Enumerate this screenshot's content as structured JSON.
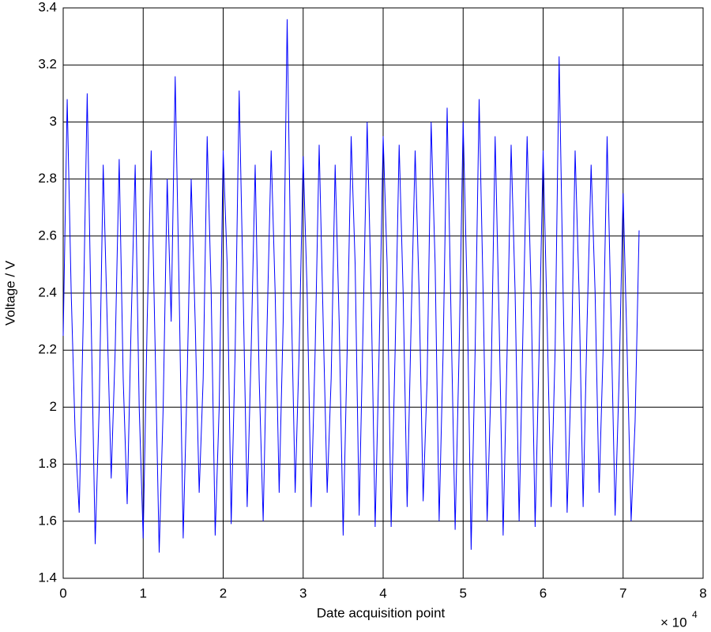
{
  "chart_data": {
    "type": "line",
    "xlabel": "Date acquisition point",
    "ylabel": "Voltage / V",
    "x_multiplier": {
      "base": "× 10",
      "power": "4"
    },
    "xlim": [
      0,
      8
    ],
    "xticks": [
      0,
      1,
      2,
      3,
      4,
      5,
      6,
      7,
      8
    ],
    "ylim": [
      1.4,
      3.4
    ],
    "yticks": [
      1.4,
      1.6,
      1.8,
      2,
      2.2,
      2.4,
      2.6,
      2.8,
      3,
      3.2,
      3.4
    ],
    "grid": true,
    "x": [
      0,
      0.05,
      0.1,
      0.15,
      0.2,
      0.25,
      0.3,
      0.35,
      0.4,
      0.45,
      0.5,
      0.55,
      0.6,
      0.65,
      0.7,
      0.75,
      0.8,
      0.85,
      0.9,
      0.95,
      1,
      1.05,
      1.1,
      1.15,
      1.2,
      1.25,
      1.3,
      1.35,
      1.4,
      1.45,
      1.5,
      1.55,
      1.6,
      1.65,
      1.7,
      1.75,
      1.8,
      1.85,
      1.9,
      1.95,
      2,
      2.05,
      2.1,
      2.15,
      2.2,
      2.25,
      2.3,
      2.35,
      2.4,
      2.45,
      2.5,
      2.55,
      2.6,
      2.65,
      2.7,
      2.75,
      2.8,
      2.85,
      2.9,
      2.95,
      3,
      3.05,
      3.1,
      3.15,
      3.2,
      3.25,
      3.3,
      3.35,
      3.4,
      3.45,
      3.5,
      3.55,
      3.6,
      3.65,
      3.7,
      3.75,
      3.8,
      3.85,
      3.9,
      3.95,
      4,
      4.05,
      4.1,
      4.15,
      4.2,
      4.25,
      4.3,
      4.35,
      4.4,
      4.45,
      4.5,
      4.55,
      4.6,
      4.65,
      4.7,
      4.75,
      4.8,
      4.85,
      4.9,
      4.95,
      5,
      5.05,
      5.1,
      5.15,
      5.2,
      5.25,
      5.3,
      5.35,
      5.4,
      5.45,
      5.5,
      5.55,
      5.6,
      5.65,
      5.7,
      5.75,
      5.8,
      5.85,
      5.9,
      5.95,
      6,
      6.05,
      6.1,
      6.15,
      6.2,
      6.25,
      6.3,
      6.35,
      6.4,
      6.45,
      6.5,
      6.55,
      6.6,
      6.65,
      6.7,
      6.75,
      6.8,
      6.85,
      6.9,
      6.95,
      7,
      7.05,
      7.1,
      7.15,
      7.2
    ],
    "series": [
      {
        "color": "#0000ff",
        "values": [
          2.25,
          3.08,
          2.4,
          1.9,
          1.63,
          2.3,
          3.1,
          2.3,
          1.52,
          2.0,
          2.85,
          2.3,
          1.75,
          2.2,
          2.87,
          2.1,
          1.66,
          2.3,
          2.85,
          2.0,
          1.54,
          2.3,
          2.9,
          2.2,
          1.49,
          2.0,
          2.8,
          2.3,
          3.16,
          2.4,
          1.54,
          2.1,
          2.8,
          2.3,
          1.7,
          2.1,
          2.95,
          2.4,
          1.55,
          2.0,
          2.9,
          2.5,
          1.59,
          2.2,
          3.11,
          2.4,
          1.65,
          2.2,
          2.85,
          2.1,
          1.6,
          2.3,
          2.9,
          2.4,
          1.7,
          2.3,
          3.36,
          2.4,
          1.7,
          2.2,
          2.88,
          2.4,
          1.65,
          2.2,
          2.92,
          2.3,
          1.7,
          2.1,
          2.85,
          2.3,
          1.55,
          2.2,
          2.95,
          2.5,
          1.62,
          2.3,
          3.0,
          2.4,
          1.58,
          2.2,
          2.95,
          2.5,
          1.58,
          2.2,
          2.92,
          2.4,
          1.65,
          2.3,
          2.9,
          2.4,
          1.67,
          2.1,
          3.0,
          2.5,
          1.6,
          2.2,
          3.05,
          2.3,
          1.57,
          2.2,
          3.0,
          2.4,
          1.5,
          2.2,
          3.08,
          2.4,
          1.6,
          2.1,
          2.95,
          2.3,
          1.55,
          2.2,
          2.92,
          2.4,
          1.6,
          2.3,
          2.95,
          2.4,
          1.58,
          2.2,
          2.9,
          2.3,
          1.65,
          2.2,
          3.23,
          2.4,
          1.63,
          2.1,
          2.9,
          2.4,
          1.65,
          2.3,
          2.85,
          2.4,
          1.7,
          2.2,
          2.95,
          2.3,
          1.62,
          2.1,
          2.75,
          2.2,
          1.6,
          1.95,
          2.62
        ]
      }
    ]
  }
}
